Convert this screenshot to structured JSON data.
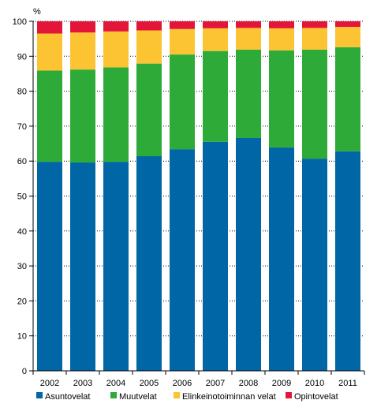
{
  "chart_data": {
    "type": "bar",
    "stacked": true,
    "unit_label": "%",
    "ylim": [
      0,
      100
    ],
    "yticks": [
      0,
      10,
      20,
      30,
      40,
      50,
      60,
      70,
      80,
      90,
      100
    ],
    "grid": true,
    "legend_position": "bottom",
    "categories": [
      "2002",
      "2003",
      "2004",
      "2005",
      "2006",
      "2007",
      "2008",
      "2009",
      "2010",
      "2011"
    ],
    "series": [
      {
        "name": "Asuntovelat",
        "color": "#0066a6",
        "values": [
          59.8,
          59.6,
          59.8,
          61.4,
          63.4,
          65.5,
          66.6,
          63.9,
          60.7,
          62.8
        ]
      },
      {
        "name": "Muutvelat",
        "color": "#2eaa38",
        "values": [
          26.1,
          26.6,
          27.0,
          26.5,
          27.1,
          26.0,
          25.3,
          27.8,
          31.2,
          29.8
        ]
      },
      {
        "name": "Elinkeinotoiminnan velat",
        "color": "#fcc433",
        "values": [
          10.6,
          10.6,
          10.3,
          9.5,
          7.3,
          6.5,
          6.2,
          6.3,
          6.2,
          5.8
        ]
      },
      {
        "name": "Opintovelat",
        "color": "#e3163a",
        "values": [
          3.5,
          3.2,
          2.9,
          2.6,
          2.2,
          2.0,
          1.9,
          2.0,
          1.9,
          1.6
        ]
      }
    ]
  }
}
